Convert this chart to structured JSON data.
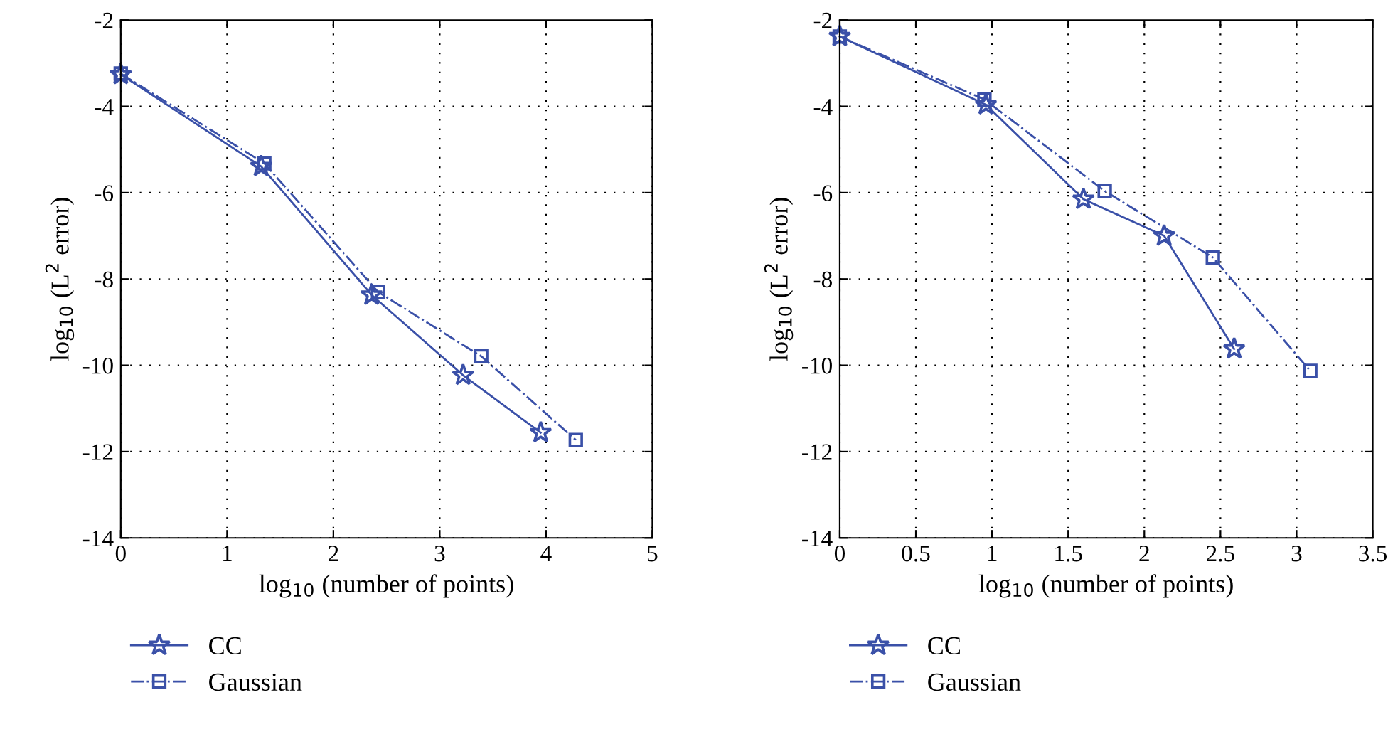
{
  "chart_data": [
    {
      "type": "line",
      "xlabel": "log$_{10}$ (number of points)",
      "ylabel": "log$_{10}$ (L$^{2}$ error)",
      "xlim": [
        0,
        5
      ],
      "xticks": [
        0,
        1,
        2,
        3,
        4,
        5
      ],
      "ylim": [
        -14,
        -2
      ],
      "yticks": [
        -14,
        -12,
        -10,
        -8,
        -6,
        -4,
        -2
      ],
      "grid": true,
      "legend": "bottom",
      "series": [
        {
          "name": "CC",
          "color": "#3a50a8",
          "marker": "star",
          "line_style": "solid",
          "x": [
            0,
            1.32,
            2.36,
            3.22,
            3.95
          ],
          "values": [
            -3.26,
            -5.39,
            -8.37,
            -10.23,
            -11.56
          ]
        },
        {
          "name": "Gaussian",
          "color": "#3a50a8",
          "marker": "square",
          "line_style": "dashdot",
          "x": [
            0,
            1.35,
            2.42,
            3.39,
            4.28
          ],
          "values": [
            -3.24,
            -5.32,
            -8.3,
            -9.79,
            -11.73
          ]
        }
      ]
    },
    {
      "type": "line",
      "xlabel": "log$_{10}$ (number of points)",
      "ylabel": "log$_{10}$ (L$^{2}$ error)",
      "xlim": [
        0,
        3.5
      ],
      "xticks": [
        0,
        0.5,
        1,
        1.5,
        2,
        2.5,
        3,
        3.5
      ],
      "ylim": [
        -14,
        -2
      ],
      "yticks": [
        -14,
        -12,
        -10,
        -8,
        -6,
        -4,
        -2
      ],
      "grid": true,
      "legend": "bottom",
      "series": [
        {
          "name": "CC",
          "color": "#3a50a8",
          "marker": "star",
          "line_style": "solid",
          "x": [
            0,
            0.96,
            1.6,
            2.13,
            2.59
          ],
          "values": [
            -2.38,
            -3.96,
            -6.15,
            -7.0,
            -9.62
          ]
        },
        {
          "name": "Gaussian",
          "color": "#3a50a8",
          "marker": "square",
          "line_style": "dashdot",
          "x": [
            0,
            0.95,
            1.74,
            2.45,
            3.09
          ],
          "values": [
            -2.38,
            -3.84,
            -5.96,
            -7.5,
            -10.13
          ]
        }
      ]
    }
  ]
}
